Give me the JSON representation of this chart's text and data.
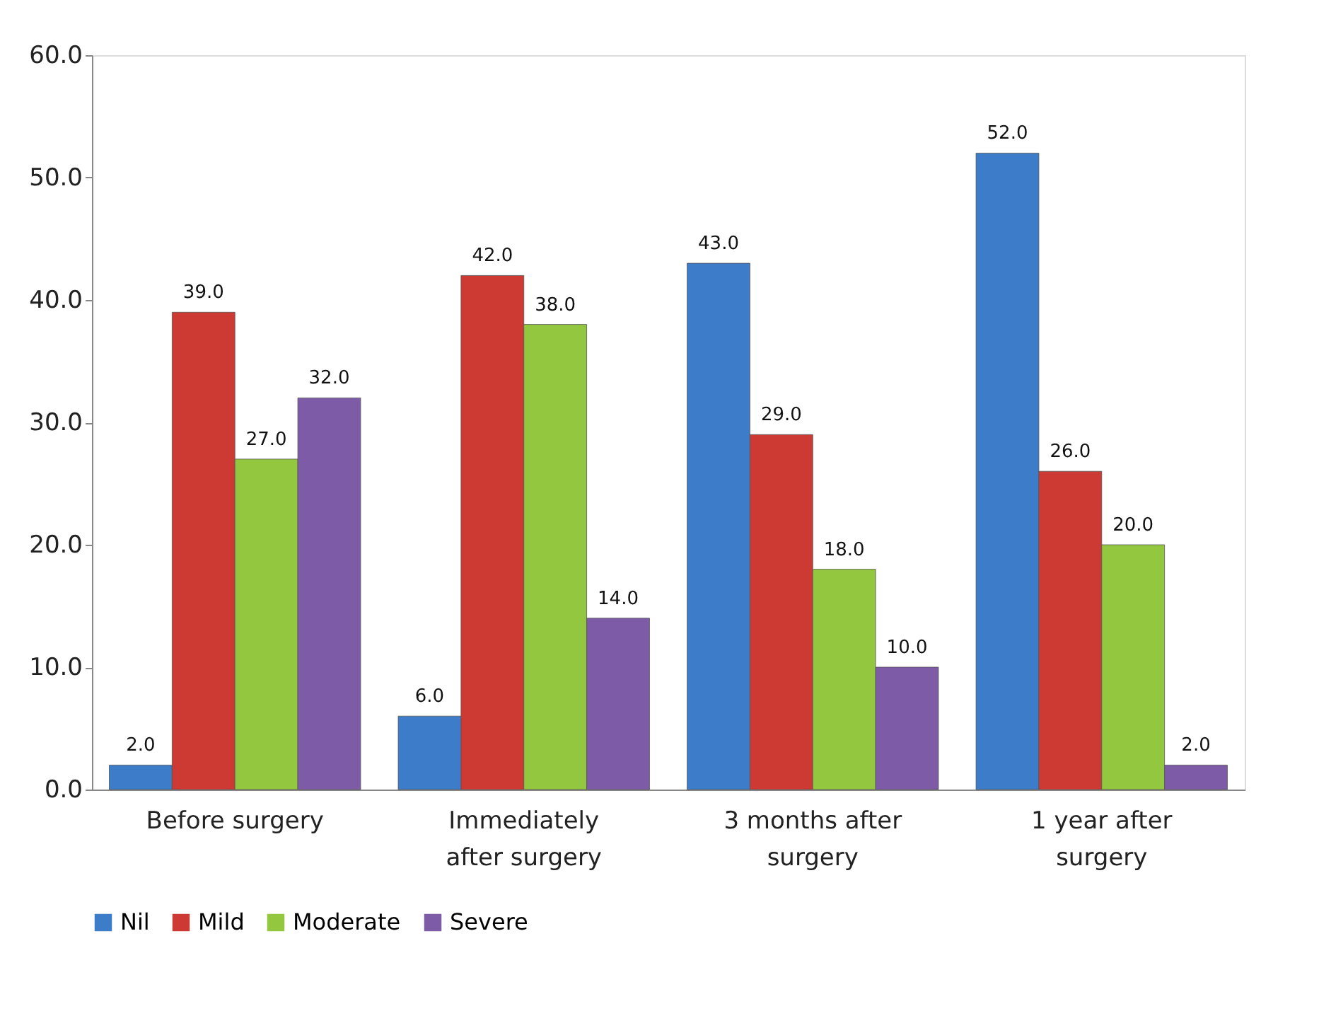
{
  "chart_data": {
    "type": "bar",
    "categories": [
      "Before surgery",
      "Immediately after surgery",
      "3 months after surgery",
      "1 year after surgery"
    ],
    "series": [
      {
        "name": "Nil",
        "color": "#3d7cc9",
        "values": [
          2,
          6,
          43,
          52
        ],
        "value_labels": [
          "2.0",
          "6.0",
          "43.0",
          "52.0"
        ]
      },
      {
        "name": "Mild",
        "color": "#cc3a33",
        "values": [
          39,
          42,
          29,
          26
        ],
        "value_labels": [
          "39.0",
          "42.0",
          "29.0",
          "26.0"
        ]
      },
      {
        "name": "Moderate",
        "color": "#94c740",
        "values": [
          27,
          38,
          18,
          20
        ],
        "value_labels": [
          "27.0",
          "38.0",
          "18.0",
          "20.0"
        ]
      },
      {
        "name": "Severe",
        "color": "#7e5ba6",
        "values": [
          32,
          14,
          10,
          2
        ],
        "value_labels": [
          "32.0",
          "14.0",
          "10.0",
          "2.0"
        ]
      }
    ],
    "ylim": [
      0,
      60
    ],
    "yticks": [
      {
        "value": 0,
        "label": "0.0"
      },
      {
        "value": 10,
        "label": "10.0"
      },
      {
        "value": 20,
        "label": "20.0"
      },
      {
        "value": 30,
        "label": "30.0"
      },
      {
        "value": 40,
        "label": "40.0"
      },
      {
        "value": 50,
        "label": "50.0"
      },
      {
        "value": 60,
        "label": "60.0"
      }
    ],
    "grid": false,
    "legend": "bottom"
  }
}
